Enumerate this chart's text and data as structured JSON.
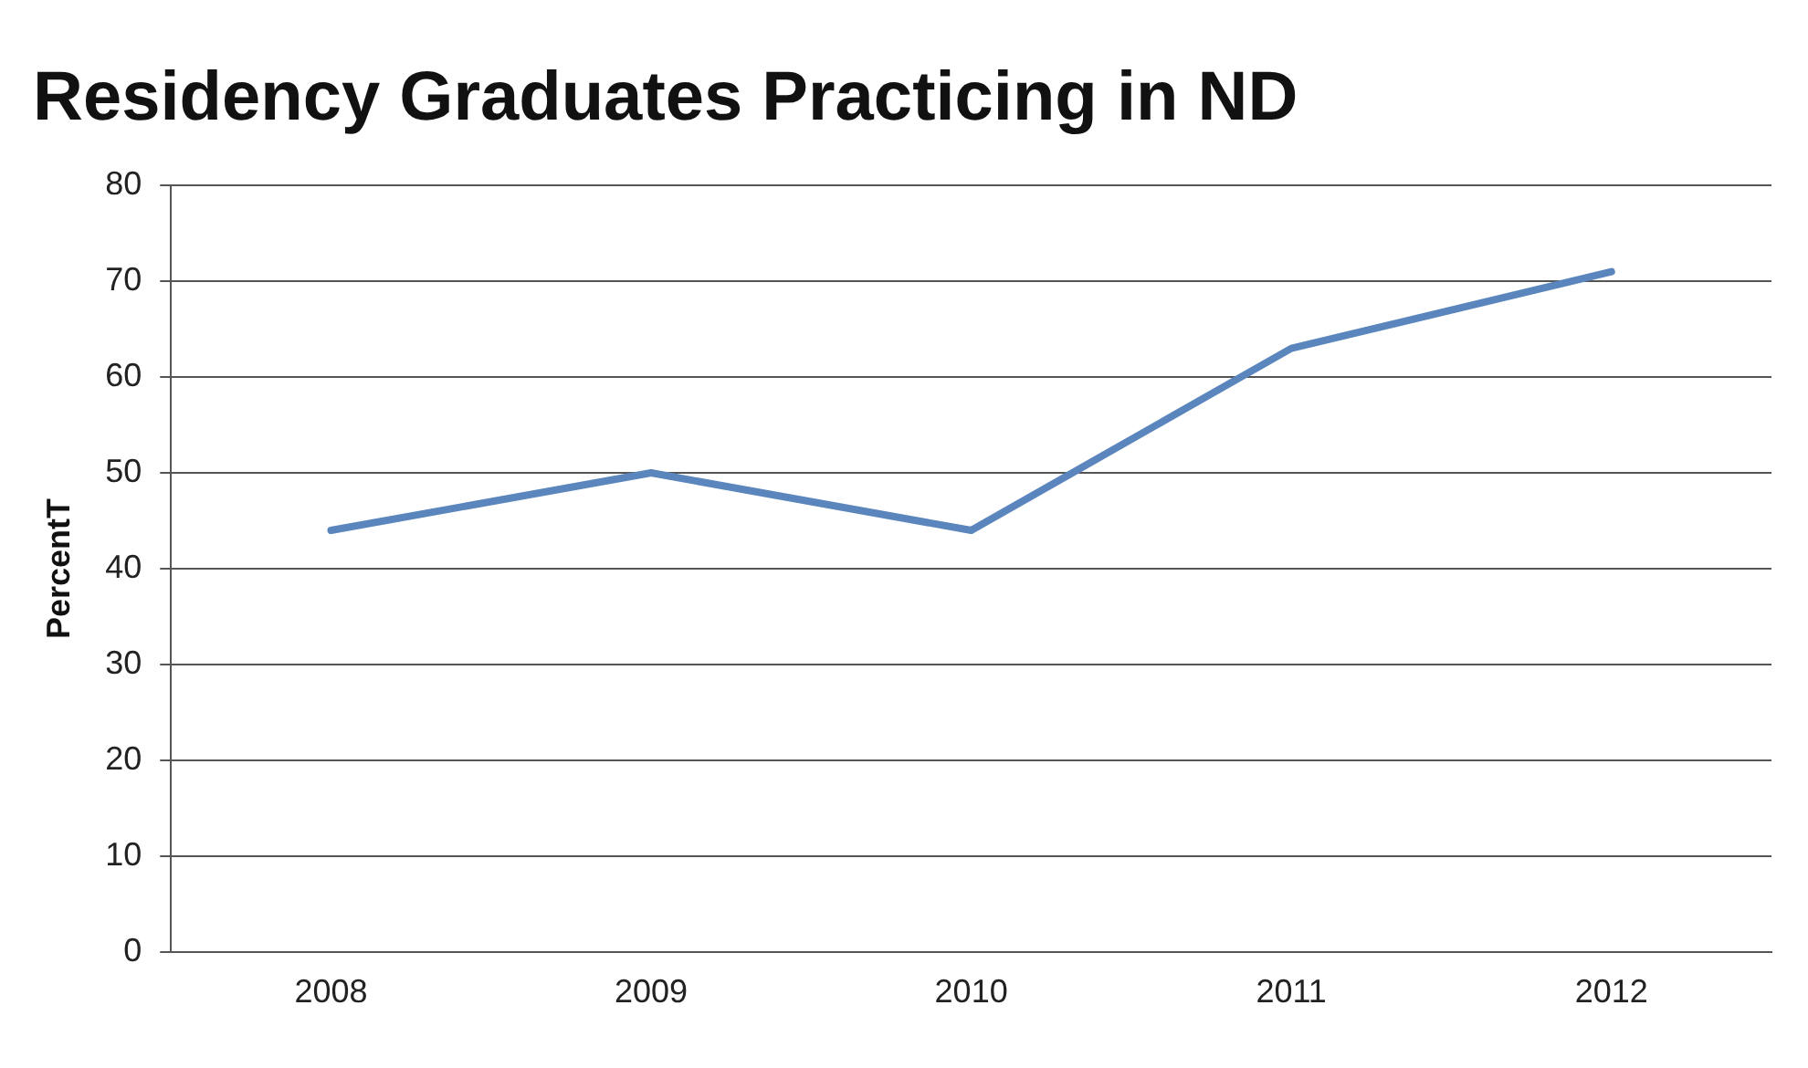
{
  "chart_data": {
    "type": "line",
    "title": "Residency Graduates Practicing in ND",
    "ylabel": "PercentT",
    "categories": [
      "2008",
      "2009",
      "2010",
      "2011",
      "2012"
    ],
    "series": [
      {
        "color": "#5b86bd",
        "values": [
          44,
          50,
          44,
          63,
          71
        ]
      }
    ],
    "ylim": [
      0,
      80
    ],
    "yticks": [
      0,
      10,
      20,
      30,
      40,
      50,
      60,
      70,
      80
    ],
    "grid": "y",
    "legend": false,
    "marker": "none",
    "line_style": "solid"
  }
}
